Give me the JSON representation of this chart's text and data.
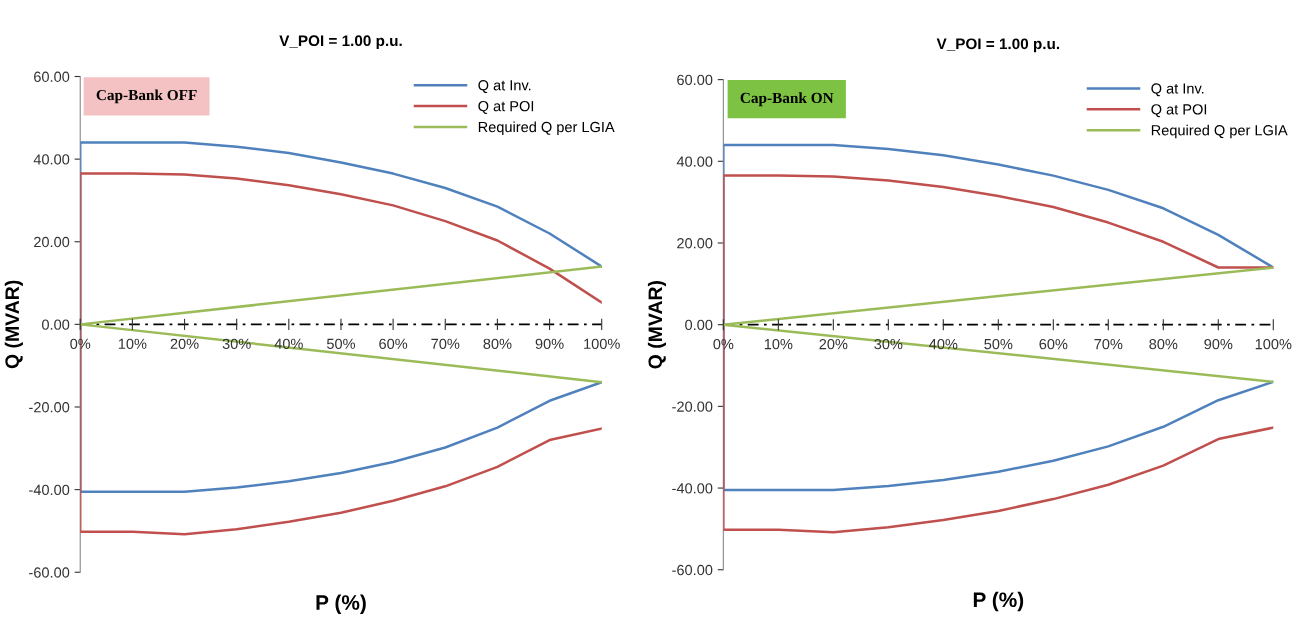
{
  "chart_data": [
    {
      "type": "line",
      "title": "V_POI = 1.00 p.u.",
      "xlabel": "P (%)",
      "ylabel": "Q (MVAR)",
      "annotations": [
        "Cap-Bank OFF"
      ],
      "ref_lines": [
        {
          "axis": "y",
          "value": 0,
          "color": "#000000"
        }
      ],
      "xlim": [
        0,
        100
      ],
      "xticks": [
        {
          "value": 0,
          "label": "0%"
        },
        {
          "value": 10,
          "label": "10%"
        },
        {
          "value": 20,
          "label": "20%"
        },
        {
          "value": 30,
          "label": "30%"
        },
        {
          "value": 40,
          "label": "40%"
        },
        {
          "value": 50,
          "label": "50%"
        },
        {
          "value": 60,
          "label": "60%"
        },
        {
          "value": 70,
          "label": "70%"
        },
        {
          "value": 80,
          "label": "80%"
        },
        {
          "value": 90,
          "label": "90%"
        },
        {
          "value": 100,
          "label": "100%"
        }
      ],
      "ylim": [
        -60,
        60
      ],
      "yticks": [
        {
          "value": -60,
          "label": "-60.00"
        },
        {
          "value": -40,
          "label": "-40.00"
        },
        {
          "value": -20,
          "label": "-20.00"
        },
        {
          "value": 0,
          "label": "0.00"
        },
        {
          "value": 20,
          "label": "20.00"
        },
        {
          "value": 40,
          "label": "40.00"
        },
        {
          "value": 60,
          "label": "60.00"
        }
      ],
      "legend": "top right",
      "grid": false,
      "marker": "none",
      "line_style": "solid",
      "series": [
        {
          "name": "Q at Inv.",
          "color": "#4f81bd",
          "x": [
            100,
            90,
            80,
            70,
            60,
            50,
            40,
            30,
            20,
            10,
            0,
            0,
            10,
            20,
            30,
            40,
            50,
            60,
            70,
            80,
            90,
            100
          ],
          "values": [
            -14,
            -18.5,
            -25,
            -29.8,
            -33.3,
            -36,
            -38,
            -39.5,
            -40.5,
            -40.5,
            -40.5,
            44,
            44,
            44,
            43,
            41.5,
            39.2,
            36.5,
            33,
            28.5,
            22,
            14
          ]
        },
        {
          "name": "Q at POI",
          "color": "#c0504d",
          "x": [
            100,
            90,
            80,
            70,
            60,
            50,
            40,
            30,
            20,
            10,
            0,
            0,
            10,
            20,
            30,
            40,
            50,
            60,
            70,
            80,
            90,
            100
          ],
          "values": [
            -25.2,
            -28,
            -34.5,
            -39.2,
            -42.7,
            -45.6,
            -47.8,
            -49.6,
            -50.8,
            -50.2,
            -50.2,
            36.5,
            36.5,
            36.3,
            35.3,
            33.7,
            31.5,
            28.8,
            25,
            20.3,
            13.5,
            5.3
          ]
        },
        {
          "name": "Required Q per LGIA",
          "color": "#9bbb59",
          "x": [
            100,
            0,
            100
          ],
          "values": [
            -14,
            0,
            14
          ]
        }
      ]
    },
    {
      "type": "line",
      "title": "V_POI = 1.00 p.u.",
      "xlabel": "P (%)",
      "ylabel": "Q (MVAR)",
      "annotations": [
        "Cap-Bank ON"
      ],
      "ref_lines": [
        {
          "axis": "y",
          "value": 0,
          "color": "#000000"
        }
      ],
      "xlim": [
        0,
        100
      ],
      "xticks": [
        {
          "value": 0,
          "label": "0%"
        },
        {
          "value": 10,
          "label": "10%"
        },
        {
          "value": 20,
          "label": "20%"
        },
        {
          "value": 30,
          "label": "30%"
        },
        {
          "value": 40,
          "label": "40%"
        },
        {
          "value": 50,
          "label": "50%"
        },
        {
          "value": 60,
          "label": "60%"
        },
        {
          "value": 70,
          "label": "70%"
        },
        {
          "value": 80,
          "label": "80%"
        },
        {
          "value": 90,
          "label": "90%"
        },
        {
          "value": 100,
          "label": "100%"
        }
      ],
      "ylim": [
        -60,
        60
      ],
      "yticks": [
        {
          "value": -60,
          "label": "-60.00"
        },
        {
          "value": -40,
          "label": "-40.00"
        },
        {
          "value": -20,
          "label": "-20.00"
        },
        {
          "value": 0,
          "label": "0.00"
        },
        {
          "value": 20,
          "label": "20.00"
        },
        {
          "value": 40,
          "label": "40.00"
        },
        {
          "value": 60,
          "label": "60.00"
        }
      ],
      "legend": "top right",
      "grid": false,
      "marker": "none",
      "line_style": "solid",
      "series": [
        {
          "name": "Q at Inv.",
          "color": "#4f81bd",
          "x": [
            100,
            90,
            80,
            70,
            60,
            50,
            40,
            30,
            20,
            10,
            0,
            0,
            10,
            20,
            30,
            40,
            50,
            60,
            70,
            80,
            90,
            100
          ],
          "values": [
            -14,
            -18.5,
            -25,
            -29.8,
            -33.3,
            -36,
            -38,
            -39.5,
            -40.5,
            -40.5,
            -40.5,
            44,
            44,
            44,
            43,
            41.5,
            39.2,
            36.5,
            33,
            28.5,
            22,
            14
          ]
        },
        {
          "name": "Q at POI",
          "color": "#c0504d",
          "x": [
            100,
            90,
            80,
            70,
            60,
            50,
            40,
            30,
            20,
            10,
            0,
            0,
            10,
            20,
            30,
            40,
            50,
            60,
            70,
            80,
            90,
            100
          ],
          "values": [
            -25.2,
            -28,
            -34.5,
            -39.2,
            -42.7,
            -45.6,
            -47.8,
            -49.6,
            -50.8,
            -50.2,
            -50.2,
            36.5,
            36.5,
            36.3,
            35.3,
            33.7,
            31.5,
            28.8,
            25,
            20.3,
            14,
            14
          ]
        },
        {
          "name": "Required Q per LGIA",
          "color": "#9bbb59",
          "x": [
            100,
            0,
            100
          ],
          "values": [
            -14,
            0,
            14
          ]
        }
      ]
    }
  ]
}
